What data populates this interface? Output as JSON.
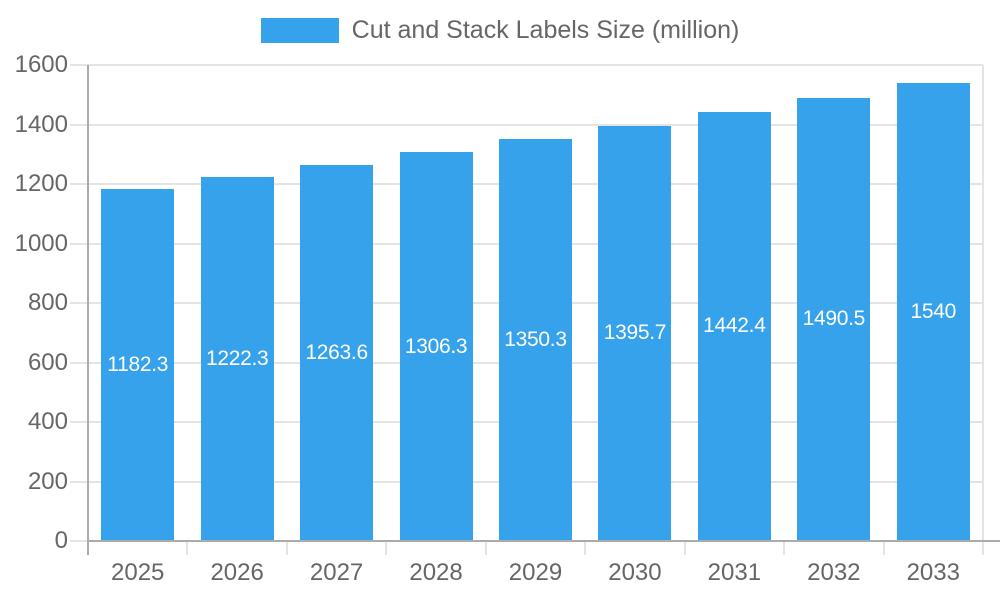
{
  "legend": {
    "label": "Cut and Stack Labels Size (million)"
  },
  "chart_data": {
    "type": "bar",
    "title": "",
    "xlabel": "",
    "ylabel": "",
    "categories": [
      "2025",
      "2026",
      "2027",
      "2028",
      "2029",
      "2030",
      "2031",
      "2032",
      "2033"
    ],
    "series": [
      {
        "name": "Cut and Stack Labels Size (million)",
        "values": [
          1182.3,
          1222.3,
          1263.6,
          1306.3,
          1350.3,
          1395.7,
          1442.4,
          1490.5,
          1540
        ]
      }
    ],
    "bar_labels": [
      "1182.3",
      "1222.3",
      "1263.6",
      "1306.3",
      "1350.3",
      "1395.7",
      "1442.4",
      "1490.5",
      "1540"
    ],
    "ylim": [
      0,
      1600
    ],
    "ytick_step": 200,
    "yticks": [
      "0",
      "200",
      "400",
      "600",
      "800",
      "1000",
      "1200",
      "1400",
      "1600"
    ],
    "grid": true,
    "legend_position": "top-center",
    "colors": {
      "bar": "#36A2EB",
      "axis_text": "#666666",
      "grid_line": "#E4E4E4",
      "zero_line": "#ABABAB",
      "bar_label_text": "#FFFFFF",
      "background": "#FFFFFF"
    }
  }
}
